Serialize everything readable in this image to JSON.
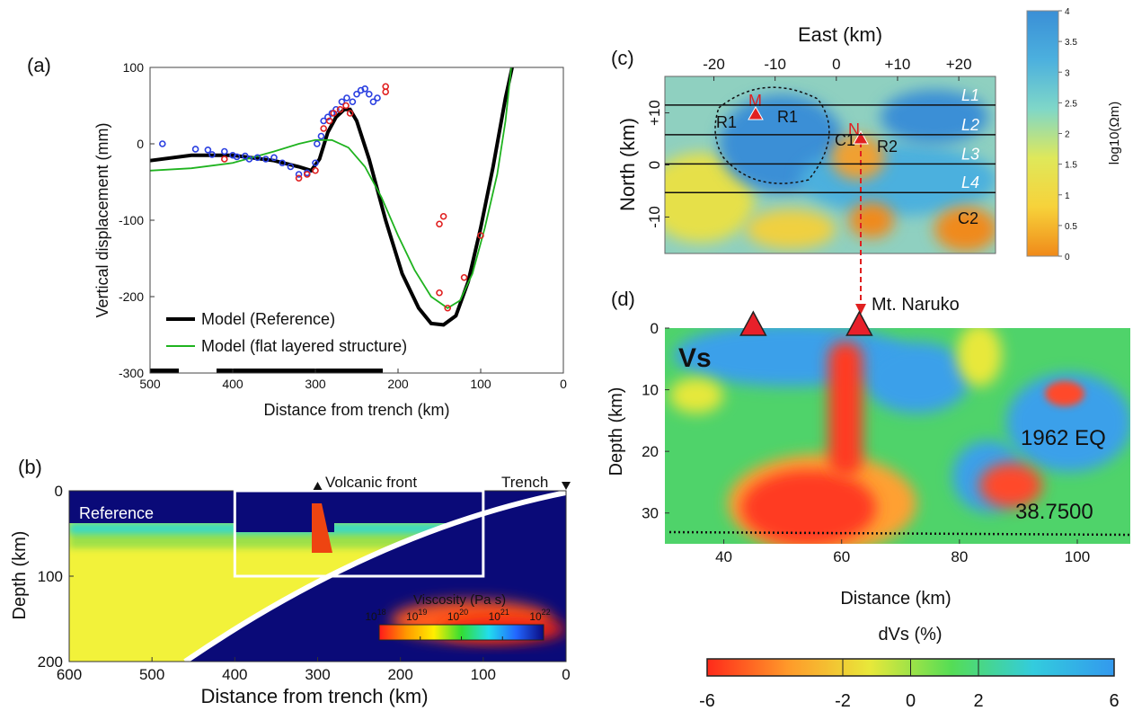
{
  "chart_data": [
    {
      "type": "line",
      "panel_label": "(a)",
      "xlabel": "Distance from trench (km)",
      "ylabel": "Vertical displacement (mm)",
      "xlim": [
        500,
        0
      ],
      "ylim": [
        -300,
        100
      ],
      "xticks": [
        500,
        400,
        300,
        200,
        100,
        0
      ],
      "yticks": [
        -300,
        -200,
        -100,
        0,
        100
      ],
      "series": [
        {
          "name": "Model (Reference)",
          "color": "#000000",
          "x": [
            500,
            450,
            400,
            350,
            320,
            305,
            295,
            285,
            275,
            265,
            258,
            250,
            235,
            215,
            195,
            175,
            160,
            145,
            130,
            115,
            100,
            85,
            70,
            62
          ],
          "values": [
            -22,
            -15,
            -15,
            -22,
            -30,
            -35,
            -20,
            15,
            35,
            45,
            45,
            30,
            -20,
            -100,
            -170,
            -215,
            -235,
            -237,
            -225,
            -180,
            -110,
            -30,
            60,
            100
          ]
        },
        {
          "name": "Model (flat layered structure)",
          "color": "#1fb31f",
          "x": [
            500,
            450,
            400,
            350,
            320,
            300,
            280,
            260,
            240,
            220,
            200,
            180,
            160,
            140,
            125,
            110,
            95,
            80,
            70,
            63
          ],
          "values": [
            -35,
            -32,
            -25,
            -10,
            0,
            5,
            5,
            -5,
            -30,
            -70,
            -120,
            -165,
            -200,
            -215,
            -205,
            -170,
            -110,
            -40,
            30,
            100
          ]
        }
      ],
      "observations": [
        {
          "color": "#2a3fe0",
          "x": [
            485,
            445,
            430,
            425,
            410,
            400,
            395,
            385,
            380,
            370,
            360,
            350,
            340,
            330,
            320,
            310,
            300,
            298,
            293,
            290,
            285,
            280,
            275,
            268,
            262,
            255,
            250,
            245,
            240,
            235,
            230,
            225
          ],
          "values": [
            0,
            -7,
            -8,
            -14,
            -10,
            -15,
            -17,
            -16,
            -20,
            -18,
            -20,
            -18,
            -25,
            -30,
            -40,
            -38,
            -25,
            0,
            10,
            30,
            35,
            40,
            45,
            55,
            60,
            55,
            65,
            70,
            72,
            65,
            55,
            60
          ]
        },
        {
          "color": "#e02020",
          "x": [
            410,
            320,
            310,
            300,
            290,
            283,
            278,
            270,
            263,
            258,
            215,
            215,
            150,
            145,
            150,
            140,
            120,
            100
          ],
          "values": [
            -20,
            -45,
            -40,
            -35,
            20,
            30,
            40,
            45,
            50,
            40,
            68,
            75,
            -105,
            -95,
            -195,
            -215,
            -175,
            -120
          ]
        }
      ]
    },
    {
      "type": "heatmap",
      "panel_label": "(b)",
      "xlabel": "Distance from trench (km)",
      "ylabel": "Depth (km)",
      "xlim": [
        600,
        0
      ],
      "ylim": [
        200,
        0
      ],
      "xticks": [
        600,
        500,
        400,
        300,
        200,
        100,
        0
      ],
      "yticks": [
        0,
        100,
        200
      ],
      "model_label": "Reference",
      "volcanic_front_label": "Volcanic front",
      "volcanic_front_x": 300,
      "trench_label": "Trench",
      "trench_x": 0,
      "inset_box_x": [
        400,
        100
      ],
      "inset_box_y": [
        100,
        0
      ],
      "colorbar": {
        "label": "Viscosity (Pa s)",
        "base": "10",
        "lim": [
          18,
          22
        ],
        "ticks": [
          18,
          19,
          20,
          21,
          22
        ],
        "colormap": [
          "#ff1a1a",
          "#ff9900",
          "#ffee00",
          "#33dd33",
          "#22ddee",
          "#2266ff",
          "#0a0a80"
        ]
      }
    },
    {
      "type": "heatmap",
      "panel_label": "(c)",
      "xlabel": "East (km)",
      "ylabel": "North (km)",
      "xlim": [
        -28,
        26
      ],
      "ylim": [
        -17,
        17
      ],
      "xticks": [
        -20,
        -10,
        0,
        {
          "value": 10,
          "label": "+10"
        },
        {
          "value": 20,
          "label": "+20"
        }
      ],
      "yticks": [
        -10,
        0,
        {
          "value": 10,
          "label": "+10"
        }
      ],
      "profiles": {
        "names": [
          "L1",
          "L2",
          "L3",
          "L4"
        ],
        "y": [
          11.5,
          5.8,
          0.2,
          -5.3
        ]
      },
      "features": [
        "M",
        "N",
        "R1",
        "R1",
        "C1",
        "R2",
        "C2"
      ],
      "colorbar": {
        "label": "log10(Ωm)",
        "lim": [
          0,
          4
        ],
        "ticks": [
          0,
          0.5,
          1,
          1.5,
          2,
          2.5,
          3,
          3.5,
          4
        ],
        "colormap": [
          "#f08a1a",
          "#f7d23a",
          "#dfe85a",
          "#7fd7c8",
          "#4cb0de",
          "#3a8fd6"
        ]
      }
    },
    {
      "type": "heatmap",
      "panel_label": "(d)",
      "xlabel": "Distance (km)",
      "ylabel": "Depth (km)",
      "xlim": [
        30,
        109
      ],
      "ylim": [
        35,
        0
      ],
      "xticks": [
        40,
        60,
        80,
        100
      ],
      "yticks": [
        0,
        10,
        20,
        30
      ],
      "volcanoes_x": [
        45,
        63
      ],
      "volcano_label": "Mt. Naruko",
      "parameter": "Vs",
      "event_label": "1962 EQ",
      "latitude_label": "38.7500",
      "colorbar": {
        "label": "dVs (%)",
        "lim": [
          -6,
          6
        ],
        "ticks": [
          -6,
          -2,
          0,
          2,
          6
        ],
        "colormap": [
          "#ff2a1a",
          "#ff9a2a",
          "#e8e83a",
          "#55dd55",
          "#33ccdd",
          "#3399ee"
        ]
      }
    }
  ]
}
